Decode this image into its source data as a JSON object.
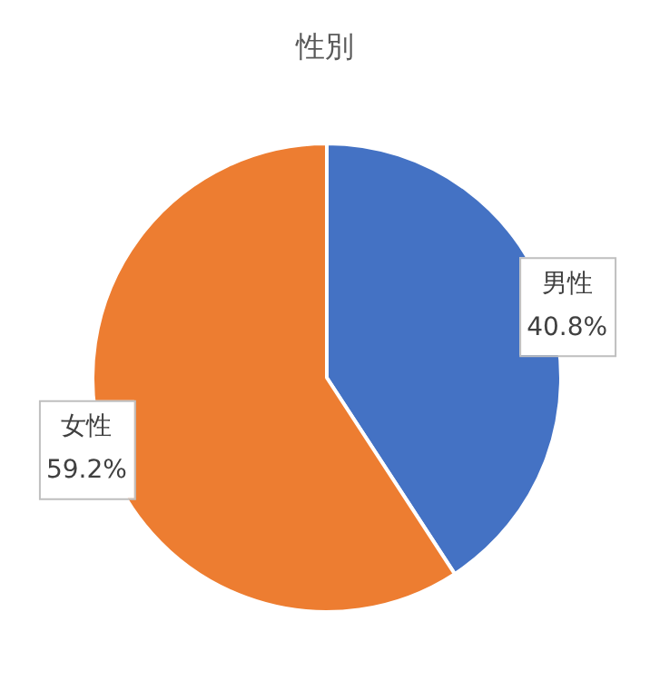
{
  "chart_data": {
    "type": "pie",
    "title": "性別",
    "categories": [
      "男性",
      "女性"
    ],
    "values": [
      40.8,
      59.2
    ],
    "value_labels": [
      "40.8%",
      "59.2%"
    ],
    "colors": [
      "#4472c4",
      "#ed7d31"
    ],
    "legend": false
  }
}
